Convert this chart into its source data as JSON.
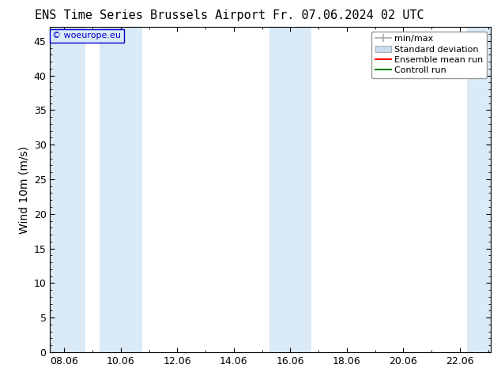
{
  "title_left": "ENS Time Series Brussels Airport",
  "title_right": "Fr. 07.06.2024 02 UTC",
  "ylabel": "Wind 10m (m/s)",
  "ylim": [
    0,
    47
  ],
  "yticks": [
    0,
    5,
    10,
    15,
    20,
    25,
    30,
    35,
    40,
    45
  ],
  "xlim_start": 7.5,
  "xlim_end": 23.1,
  "xtick_labels": [
    "08.06",
    "10.06",
    "12.06",
    "14.06",
    "16.06",
    "18.06",
    "20.06",
    "22.06"
  ],
  "xtick_positions": [
    8,
    10,
    12,
    14,
    16,
    18,
    20,
    22
  ],
  "shaded_bands": [
    {
      "x_start": 7.5,
      "x_end": 8.75,
      "color": "#daeaf7"
    },
    {
      "x_start": 9.25,
      "x_end": 10.75,
      "color": "#daeaf7"
    },
    {
      "x_start": 15.25,
      "x_end": 16.75,
      "color": "#daeaf7"
    },
    {
      "x_start": 22.25,
      "x_end": 23.1,
      "color": "#daeaf7"
    }
  ],
  "legend_entries": [
    {
      "label": "min/max",
      "color": "#aaaaaa",
      "style": "errorbar"
    },
    {
      "label": "Standard deviation",
      "color": "#c8ddf0",
      "style": "fill"
    },
    {
      "label": "Ensemble mean run",
      "color": "#ff0000",
      "style": "line"
    },
    {
      "label": "Controll run",
      "color": "#008000",
      "style": "line"
    }
  ],
  "watermark_text": "© woeurope.eu",
  "watermark_color": "#0000cc",
  "watermark_box_facecolor": "#daeaf7",
  "watermark_box_edgecolor": "#0000cc",
  "bg_color": "#ffffff",
  "plot_bg_color": "#ffffff",
  "title_fontsize": 11,
  "axis_fontsize": 10,
  "tick_fontsize": 9,
  "legend_fontsize": 8,
  "watermark_fontsize": 8
}
